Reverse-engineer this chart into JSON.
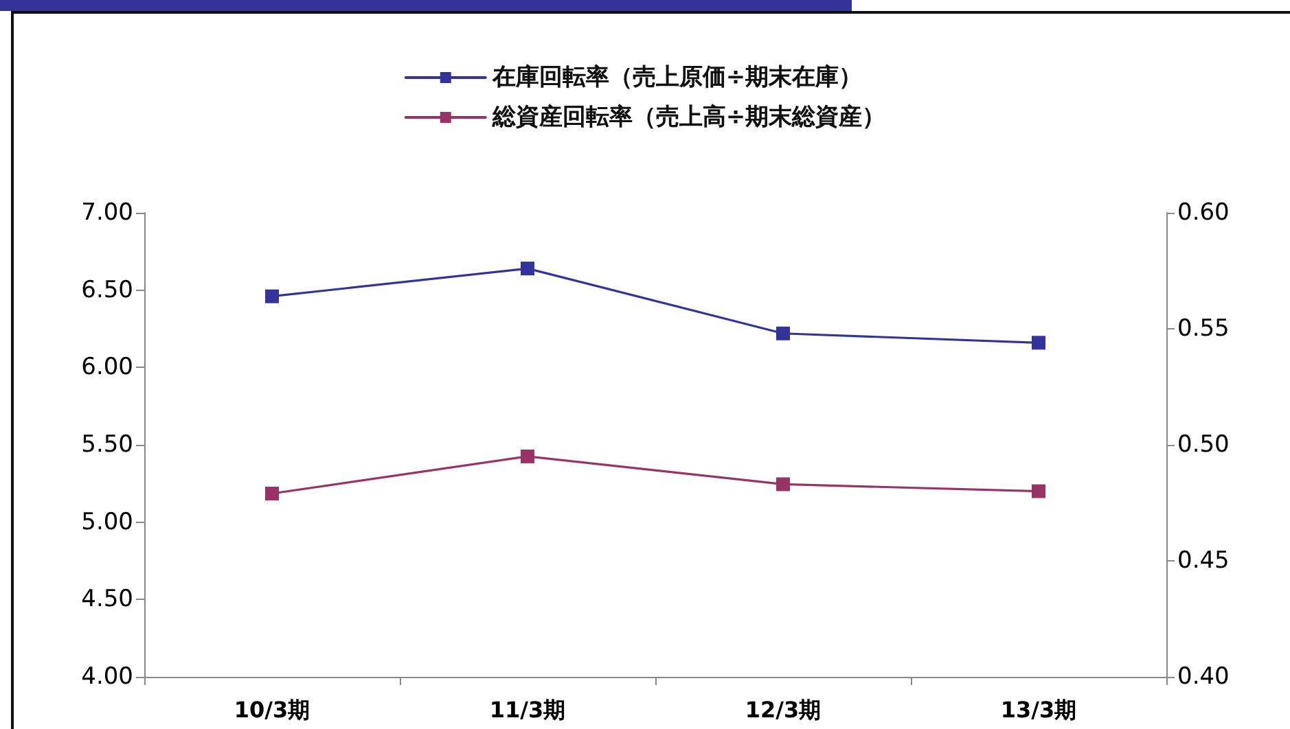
{
  "chart_data": {
    "type": "line",
    "categories": [
      "10/3期",
      "11/3期",
      "12/3期",
      "13/3期"
    ],
    "series": [
      {
        "name": "在庫回転率（売上原価÷期末在庫）",
        "color": "#333399",
        "values": [
          6.46,
          6.64,
          6.22,
          6.16
        ]
      },
      {
        "name": "総資産回転率（売上高÷期末総資産）",
        "color": "#993366",
        "values": [
          0.479,
          0.495,
          0.483,
          0.48
        ],
        "axis": "y2"
      }
    ],
    "ylim": [
      4,
      7
    ],
    "yticks": [
      {
        "value": 4,
        "label": "4.00"
      },
      {
        "value": 4.5,
        "label": "4.50"
      },
      {
        "value": 5,
        "label": "5.00"
      },
      {
        "value": 5.5,
        "label": "5.50"
      },
      {
        "value": 6,
        "label": "6.00"
      },
      {
        "value": 6.5,
        "label": "6.50"
      },
      {
        "value": 7,
        "label": "7.00"
      }
    ],
    "y2lim": [
      0.4,
      0.6
    ],
    "y2ticks": [
      {
        "value": 0.4,
        "label": "0.40"
      },
      {
        "value": 0.45,
        "label": "0.45"
      },
      {
        "value": 0.5,
        "label": "0.50"
      },
      {
        "value": 0.55,
        "label": "0.55"
      },
      {
        "value": 0.6,
        "label": "0.60"
      }
    ],
    "grid": false,
    "legend": "top",
    "marker": "square",
    "line_style": "solid"
  }
}
